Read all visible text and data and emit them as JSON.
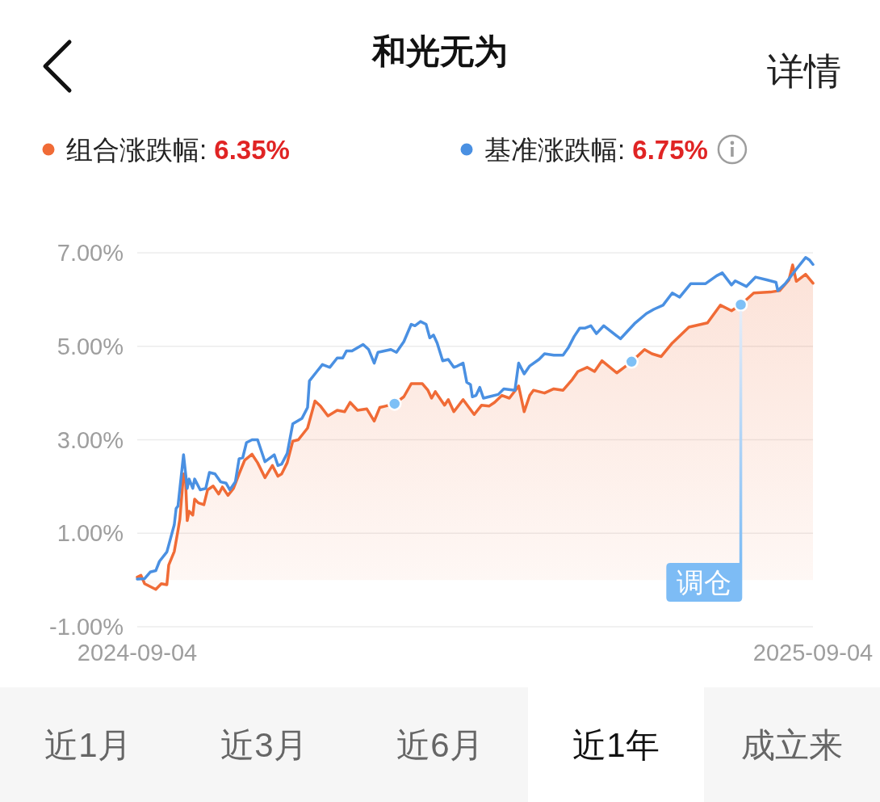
{
  "chart_data": {
    "type": "line",
    "title": "和光无为",
    "xlim": [
      "2024-09-04",
      "2025-09-04"
    ],
    "xticks": [
      "2024-09-04",
      "2025-09-04"
    ],
    "ylim": [
      -1,
      7
    ],
    "yticks": [
      {
        "value": -1,
        "label": "-1.00%"
      },
      {
        "value": 1,
        "label": "1.00%"
      },
      {
        "value": 3,
        "label": "3.00%"
      },
      {
        "value": 5,
        "label": "5.00%"
      },
      {
        "value": 7,
        "label": "7.00%"
      }
    ],
    "grid": "y",
    "legend": "top",
    "series": [
      {
        "name": "组合涨跌幅: **6.35%**",
        "color": "#f06b36",
        "type": "area",
        "x": [
          "2024-09-04",
          "2024-09-06",
          "2024-09-08",
          "2024-09-14",
          "2024-09-17",
          "2024-09-20",
          "2024-09-21",
          "2024-09-24",
          "2024-09-26",
          "2024-09-27",
          "2024-09-29",
          "2024-09-30",
          "2024-10-01",
          "2024-10-02",
          "2024-10-04",
          "2024-10-05",
          "2024-10-07",
          "2024-10-10",
          "2024-10-12",
          "2024-10-15",
          "2024-10-18",
          "2024-10-20",
          "2024-10-23",
          "2024-10-26",
          "2024-10-29",
          "2024-11-01",
          "2024-11-05",
          "2024-11-08",
          "2024-11-12",
          "2024-11-16",
          "2024-11-19",
          "2024-11-21",
          "2024-11-24",
          "2024-11-27",
          "2024-11-30",
          "2024-12-05",
          "2024-12-09",
          "2024-12-12",
          "2024-12-16",
          "2024-12-21",
          "2024-12-25",
          "2024-12-28",
          "2025-01-01",
          "2025-01-06",
          "2025-01-10",
          "2025-01-13",
          "2025-01-16",
          "2025-01-21",
          "2025-01-26",
          "2025-01-30",
          "2025-02-02",
          "2025-02-05",
          "2025-02-08",
          "2025-02-10",
          "2025-02-12",
          "2025-02-17",
          "2025-02-19",
          "2025-02-22",
          "2025-02-27",
          "2025-03-05",
          "2025-03-09",
          "2025-03-13",
          "2025-03-16",
          "2025-03-20",
          "2025-03-24",
          "2025-03-29",
          "2025-04-01",
          "2025-04-04",
          "2025-04-06",
          "2025-04-12",
          "2025-04-17",
          "2025-04-22",
          "2025-04-27",
          "2025-04-30",
          "2025-05-05",
          "2025-05-09",
          "2025-05-13",
          "2025-05-21",
          "2025-05-25",
          "2025-05-29",
          "2025-06-05",
          "2025-06-09",
          "2025-06-14",
          "2025-06-20",
          "2025-06-29",
          "2025-07-09",
          "2025-07-16",
          "2025-07-22",
          "2025-07-27",
          "2025-08-03",
          "2025-08-12",
          "2025-08-17",
          "2025-08-22",
          "2025-08-24",
          "2025-08-26",
          "2025-08-31",
          "2025-09-04"
        ],
        "values": [
          0.06,
          0.1,
          -0.08,
          -0.2,
          -0.08,
          -0.1,
          0.32,
          0.61,
          1.06,
          1.3,
          2.27,
          2.22,
          1.27,
          1.47,
          1.39,
          1.73,
          1.65,
          1.61,
          1.93,
          2.01,
          1.84,
          1.99,
          1.81,
          1.96,
          2.27,
          2.56,
          2.69,
          2.51,
          2.19,
          2.45,
          2.22,
          2.27,
          2.51,
          2.97,
          3.0,
          3.25,
          3.83,
          3.72,
          3.51,
          3.63,
          3.6,
          3.8,
          3.63,
          3.66,
          3.4,
          3.69,
          3.72,
          3.77,
          3.92,
          4.2,
          4.2,
          4.2,
          4.06,
          3.89,
          4.03,
          3.74,
          3.86,
          3.6,
          3.86,
          3.54,
          3.74,
          3.72,
          3.8,
          3.95,
          3.89,
          4.15,
          3.6,
          3.95,
          4.06,
          4.0,
          4.09,
          4.06,
          4.29,
          4.46,
          4.55,
          4.46,
          4.69,
          4.43,
          4.55,
          4.67,
          4.93,
          4.84,
          4.78,
          5.07,
          5.41,
          5.5,
          5.88,
          5.76,
          5.89,
          6.14,
          6.16,
          6.19,
          6.42,
          6.74,
          6.39,
          6.54,
          6.35
        ]
      },
      {
        "name": "基准涨跌幅: **6.75%**",
        "color": "#4a90e2",
        "x": [
          "2024-09-04",
          "2024-09-08",
          "2024-09-11",
          "2024-09-14",
          "2024-09-16",
          "2024-09-20",
          "2024-09-24",
          "2024-09-25",
          "2024-09-26",
          "2024-09-29",
          "2024-10-01",
          "2024-10-02",
          "2024-10-04",
          "2024-10-05",
          "2024-10-08",
          "2024-10-11",
          "2024-10-13",
          "2024-10-16",
          "2024-10-19",
          "2024-10-22",
          "2024-10-24",
          "2024-10-27",
          "2024-10-29",
          "2024-10-31",
          "2024-11-02",
          "2024-11-05",
          "2024-11-08",
          "2024-11-12",
          "2024-11-17",
          "2024-11-19",
          "2024-11-21",
          "2024-11-24",
          "2024-11-27",
          "2024-12-02",
          "2024-12-05",
          "2024-12-06",
          "2024-12-10",
          "2024-12-13",
          "2024-12-17",
          "2024-12-21",
          "2024-12-24",
          "2024-12-26",
          "2024-12-29",
          "2025-01-04",
          "2025-01-07",
          "2025-01-10",
          "2025-01-12",
          "2025-01-19",
          "2025-01-22",
          "2025-01-26",
          "2025-01-30",
          "2025-02-01",
          "2025-02-04",
          "2025-02-07",
          "2025-02-09",
          "2025-02-11",
          "2025-02-13",
          "2025-02-16",
          "2025-02-19",
          "2025-02-22",
          "2025-02-24",
          "2025-02-27",
          "2025-03-01",
          "2025-03-03",
          "2025-03-04",
          "2025-03-06",
          "2025-03-08",
          "2025-03-10",
          "2025-03-13",
          "2025-03-18",
          "2025-03-21",
          "2025-03-27",
          "2025-03-29",
          "2025-04-01",
          "2025-04-04",
          "2025-04-09",
          "2025-04-12",
          "2025-04-17",
          "2025-04-22",
          "2025-04-25",
          "2025-04-28",
          "2025-05-01",
          "2025-05-04",
          "2025-05-07",
          "2025-05-10",
          "2025-05-14",
          "2025-05-23",
          "2025-05-31",
          "2025-06-06",
          "2025-06-10",
          "2025-06-15",
          "2025-06-20",
          "2025-06-24",
          "2025-06-30",
          "2025-07-08",
          "2025-07-14",
          "2025-07-17",
          "2025-07-22",
          "2025-07-24",
          "2025-07-30",
          "2025-08-04",
          "2025-08-10",
          "2025-08-15",
          "2025-08-16",
          "2025-08-20",
          "2025-08-26",
          "2025-08-31",
          "2025-09-02",
          "2025-09-04"
        ],
        "values": [
          0.02,
          0.03,
          0.17,
          0.2,
          0.4,
          0.6,
          1.18,
          1.53,
          1.58,
          2.68,
          1.96,
          2.16,
          1.96,
          2.16,
          1.93,
          1.96,
          2.3,
          2.27,
          2.1,
          2.07,
          1.93,
          2.1,
          2.59,
          2.62,
          2.94,
          3.0,
          3.0,
          2.53,
          2.68,
          2.45,
          2.48,
          2.71,
          3.34,
          3.46,
          3.69,
          4.26,
          4.46,
          4.61,
          4.55,
          4.75,
          4.75,
          4.9,
          4.9,
          5.04,
          4.93,
          4.64,
          4.87,
          4.93,
          4.87,
          5.1,
          5.47,
          5.44,
          5.53,
          5.47,
          5.18,
          5.24,
          5.07,
          4.69,
          4.72,
          4.55,
          4.58,
          4.64,
          4.23,
          4.18,
          3.92,
          3.95,
          4.12,
          3.89,
          3.92,
          3.97,
          4.09,
          4.06,
          4.64,
          4.41,
          4.58,
          4.72,
          4.84,
          4.81,
          4.81,
          4.98,
          5.21,
          5.39,
          5.39,
          5.44,
          5.27,
          5.44,
          5.16,
          5.5,
          5.7,
          5.79,
          5.88,
          6.14,
          6.05,
          6.34,
          6.34,
          6.51,
          6.57,
          6.31,
          6.4,
          6.28,
          6.48,
          6.42,
          6.37,
          6.19,
          6.34,
          6.65,
          6.9,
          6.85,
          6.75
        ]
      },
      {
        "color": "#7ec0f6",
        "type": "scatter",
        "x": [
          "2025-01-21",
          "2025-05-29",
          "2025-07-27"
        ],
        "values": [
          3.77,
          4.67,
          5.89
        ]
      }
    ],
    "annotations": [
      "详情",
      "近1月",
      "近3月",
      "近6月",
      "近1年",
      "成立来",
      "调仓"
    ]
  }
}
